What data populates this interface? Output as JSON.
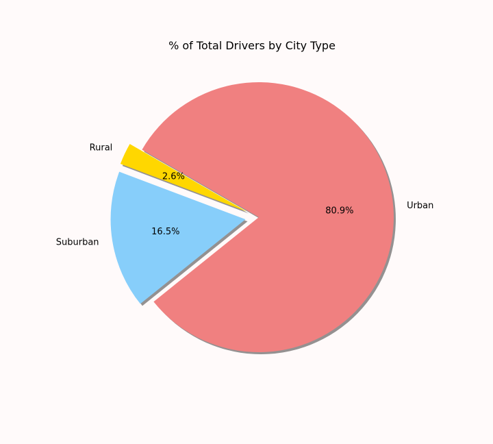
{
  "chart_data": {
    "type": "pie",
    "title": "% of Total Drivers by City Type",
    "slices": [
      {
        "label": "Rural",
        "value": 2.6,
        "pct_label": "2.6%",
        "color": "#ffd700",
        "explode": true
      },
      {
        "label": "Suburban",
        "value": 16.5,
        "pct_label": "16.5%",
        "color": "#87cefa",
        "explode": true
      },
      {
        "label": "Urban",
        "value": 80.9,
        "pct_label": "80.9%",
        "color": "#f08080",
        "explode": false
      }
    ],
    "shadow": true,
    "background": "#fffafa"
  }
}
